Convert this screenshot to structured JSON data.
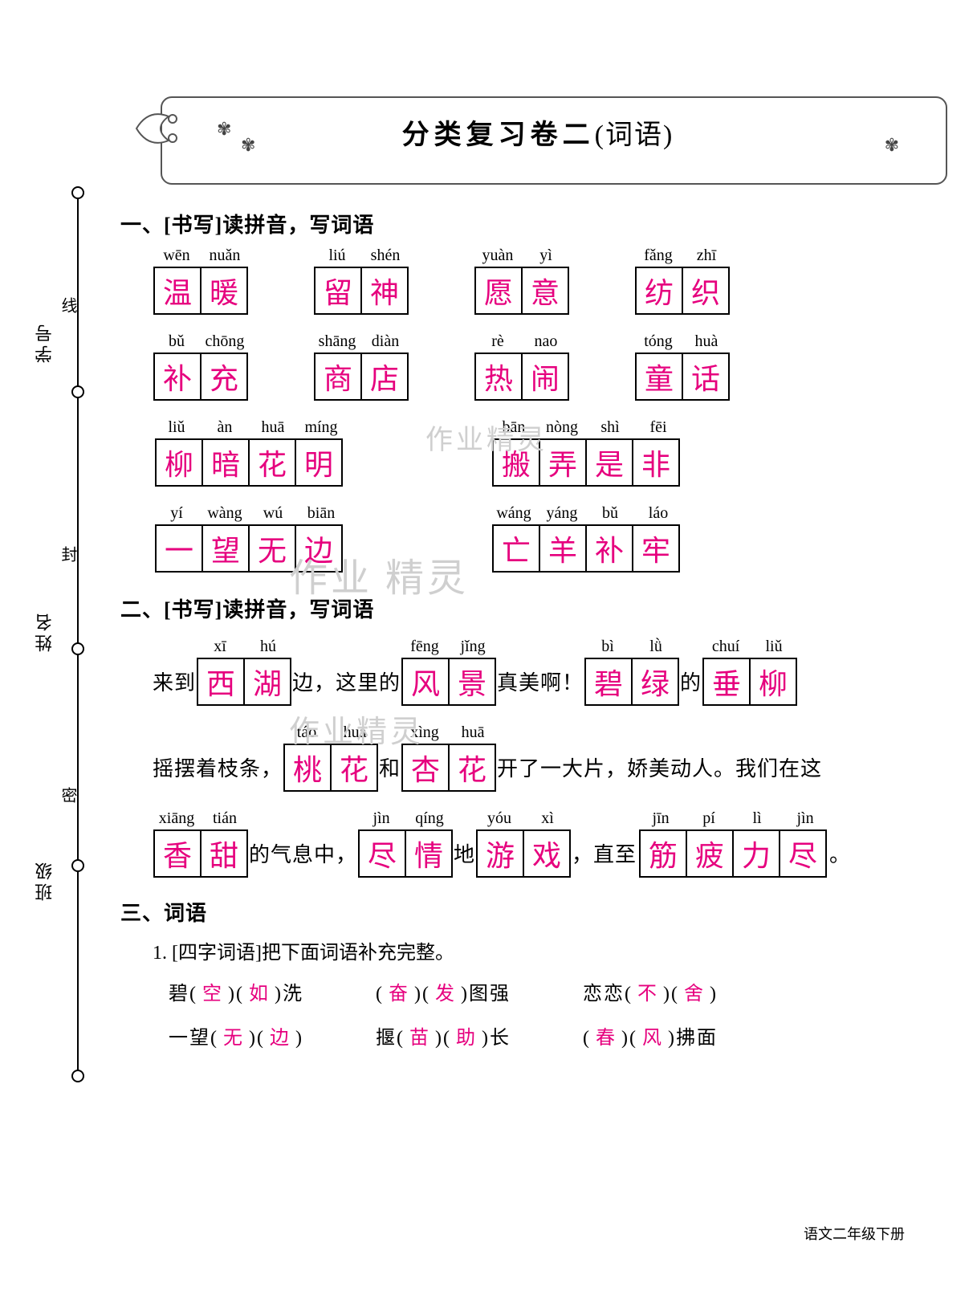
{
  "title_main": "分类复习卷二",
  "title_sub": "(词语)",
  "colors": {
    "answer": "#e6007e",
    "text": "#000000",
    "bg": "#ffffff",
    "border": "#000000",
    "watermark": "#cfcfcf"
  },
  "margin_labels": [
    "学号",
    "姓名",
    "班级"
  ],
  "margin_hints": [
    "线",
    "封",
    "密"
  ],
  "section1": {
    "head": "一、[书写]读拼音，写词语",
    "rows": [
      [
        {
          "pinyin": [
            "wēn",
            "nuǎn"
          ],
          "chars": [
            "温",
            "暖"
          ]
        },
        {
          "pinyin": [
            "liú",
            "shén"
          ],
          "chars": [
            "留",
            "神"
          ]
        },
        {
          "pinyin": [
            "yuàn",
            "yì"
          ],
          "chars": [
            "愿",
            "意"
          ]
        },
        {
          "pinyin": [
            "fǎng",
            "zhī"
          ],
          "chars": [
            "纺",
            "织"
          ]
        }
      ],
      [
        {
          "pinyin": [
            "bǔ",
            "chōng"
          ],
          "chars": [
            "补",
            "充"
          ]
        },
        {
          "pinyin": [
            "shāng",
            "diàn"
          ],
          "chars": [
            "商",
            "店"
          ]
        },
        {
          "pinyin": [
            "rè",
            "nao"
          ],
          "chars": [
            "热",
            "闹"
          ]
        },
        {
          "pinyin": [
            "tóng",
            "huà"
          ],
          "chars": [
            "童",
            "话"
          ]
        }
      ],
      [
        {
          "pinyin": [
            "liǔ",
            "àn",
            "huā",
            "míng"
          ],
          "chars": [
            "柳",
            "暗",
            "花",
            "明"
          ]
        },
        {
          "pinyin": [
            "bān",
            "nòng",
            "shì",
            "fēi"
          ],
          "chars": [
            "搬",
            "弄",
            "是",
            "非"
          ]
        }
      ],
      [
        {
          "pinyin": [
            "yí",
            "wàng",
            "wú",
            "biān"
          ],
          "chars": [
            "一",
            "望",
            "无",
            "边"
          ]
        },
        {
          "pinyin": [
            "wáng",
            "yáng",
            "bǔ",
            "láo"
          ],
          "chars": [
            "亡",
            "羊",
            "补",
            "牢"
          ]
        }
      ]
    ]
  },
  "section2": {
    "head": "二、[书写]读拼音，写词语",
    "line1": {
      "pre": "来到",
      "w1": {
        "pinyin": [
          "xī",
          "hú"
        ],
        "chars": [
          "西",
          "湖"
        ]
      },
      "mid1": "边，这里的",
      "w2": {
        "pinyin": [
          "fēng",
          "jǐng"
        ],
        "chars": [
          "风",
          "景"
        ]
      },
      "mid2": "真美啊！",
      "w3": {
        "pinyin": [
          "bì",
          "lǜ"
        ],
        "chars": [
          "碧",
          "绿"
        ]
      },
      "mid3": "的",
      "w4": {
        "pinyin": [
          "chuí",
          "liǔ"
        ],
        "chars": [
          "垂",
          "柳"
        ]
      }
    },
    "line2": {
      "pre": "摇摆着枝条，",
      "w1": {
        "pinyin": [
          "táo",
          "huā"
        ],
        "chars": [
          "桃",
          "花"
        ]
      },
      "mid1": "和",
      "w2": {
        "pinyin": [
          "xìng",
          "huā"
        ],
        "chars": [
          "杏",
          "花"
        ]
      },
      "mid2": "开了一大片，娇美动人。我们在这"
    },
    "line3": {
      "w1": {
        "pinyin": [
          "xiāng",
          "tián"
        ],
        "chars": [
          "香",
          "甜"
        ]
      },
      "mid1": "的气息中，",
      "w2": {
        "pinyin": [
          "jìn",
          "qíng"
        ],
        "chars": [
          "尽",
          "情"
        ]
      },
      "mid2": "地",
      "w3": {
        "pinyin": [
          "yóu",
          "xì"
        ],
        "chars": [
          "游",
          "戏"
        ]
      },
      "mid3": "，直至",
      "w4": {
        "pinyin": [
          "jīn",
          "pí",
          "lì",
          "jìn"
        ],
        "chars": [
          "筋",
          "疲",
          "力",
          "尽"
        ]
      },
      "tail": "。"
    }
  },
  "section3": {
    "head": "三、词语",
    "sub": "1. [四字词语]把下面词语补充完整。",
    "row1": [
      {
        "parts": [
          "碧(",
          "空",
          ")(",
          "如",
          ")洗"
        ]
      },
      {
        "parts": [
          "(",
          "奋",
          ")(",
          "发",
          ")图强"
        ]
      },
      {
        "parts": [
          "恋恋(",
          "不",
          ")(",
          "舍",
          ")"
        ]
      }
    ],
    "row2": [
      {
        "parts": [
          "一望(",
          "无",
          ")(",
          "边",
          ")"
        ]
      },
      {
        "parts": [
          "揠(",
          "苗",
          ")(",
          "助",
          ")长"
        ]
      },
      {
        "parts": [
          "(",
          "春",
          ")(",
          "风",
          ")拂面"
        ]
      }
    ]
  },
  "footer": "语文二年级下册",
  "watermarks": [
    "作业精灵",
    "作业 精灵",
    "作业精灵"
  ]
}
